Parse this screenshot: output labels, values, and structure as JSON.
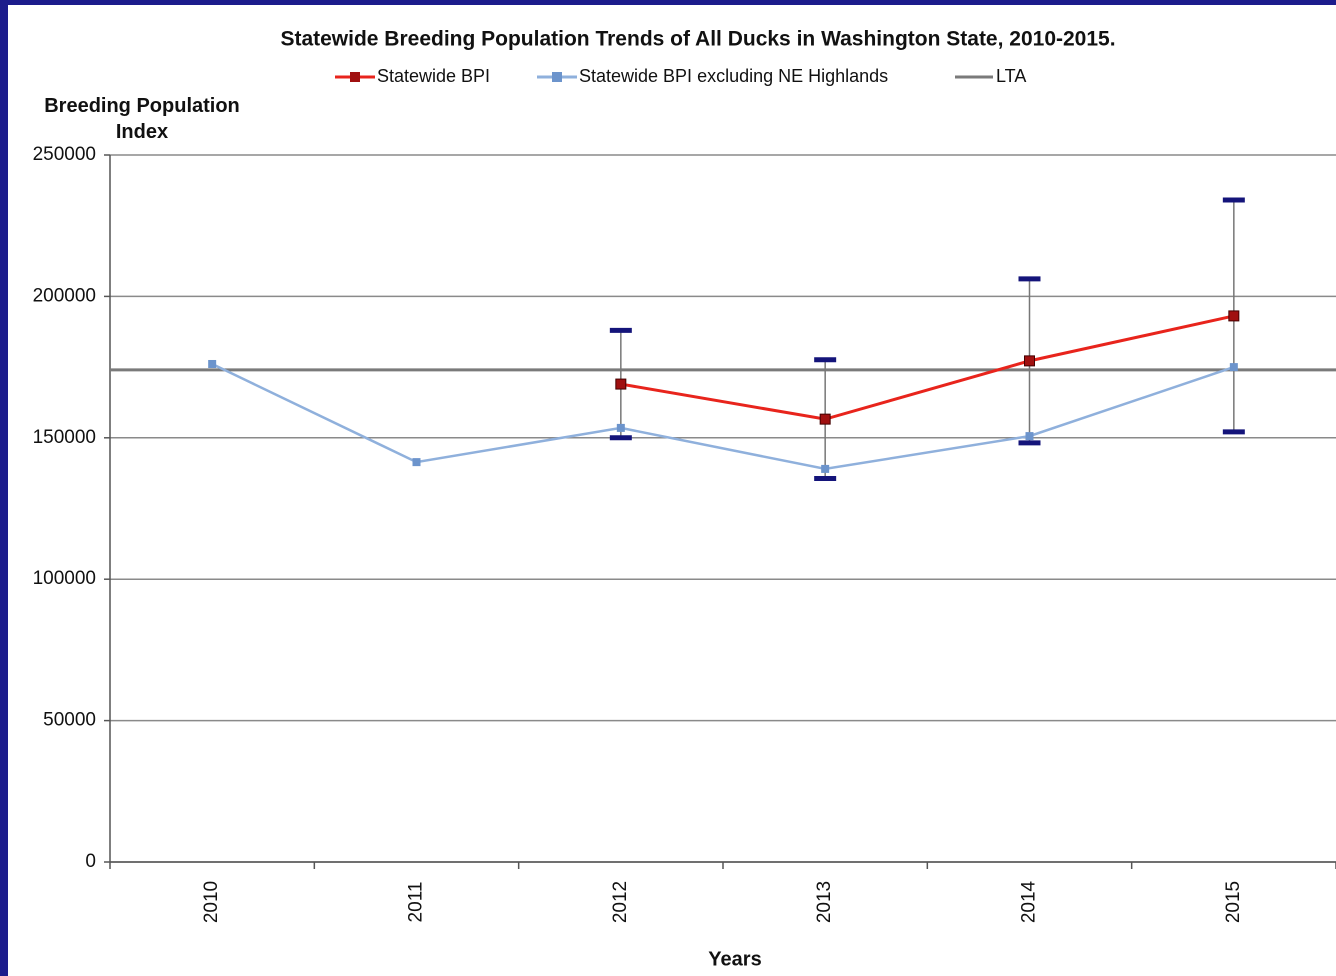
{
  "chart_data": {
    "type": "line",
    "title": "Statewide Breeding Population Trends of All Ducks in Washington State, 2010-2015.",
    "y_label": "Breeding Population Index",
    "x_label": "Years",
    "categories": [
      "2010",
      "2011",
      "2012",
      "2013",
      "2014",
      "2015"
    ],
    "series": [
      {
        "name": "Statewide BPI",
        "color": "#e8241c",
        "marker_color": "#a01010",
        "values": [
          null,
          null,
          169000,
          156600,
          177200,
          193100
        ],
        "errors": [
          null,
          null,
          19000,
          21000,
          29000,
          41000
        ]
      },
      {
        "name": "Statewide BPI excluding NE Highlands",
        "color": "#8fb0dc",
        "marker_color": "#6c94cc",
        "values": [
          176100,
          141400,
          153500,
          139000,
          150600,
          175000
        ]
      }
    ],
    "reference_lines": [
      {
        "name": "LTA",
        "value": 174000,
        "color": "#7a7a7a"
      }
    ],
    "error_bar_color": "#14147a",
    "ylim": [
      0,
      250000
    ],
    "yticks": [
      0,
      50000,
      100000,
      150000,
      200000,
      250000
    ],
    "grid": true
  }
}
